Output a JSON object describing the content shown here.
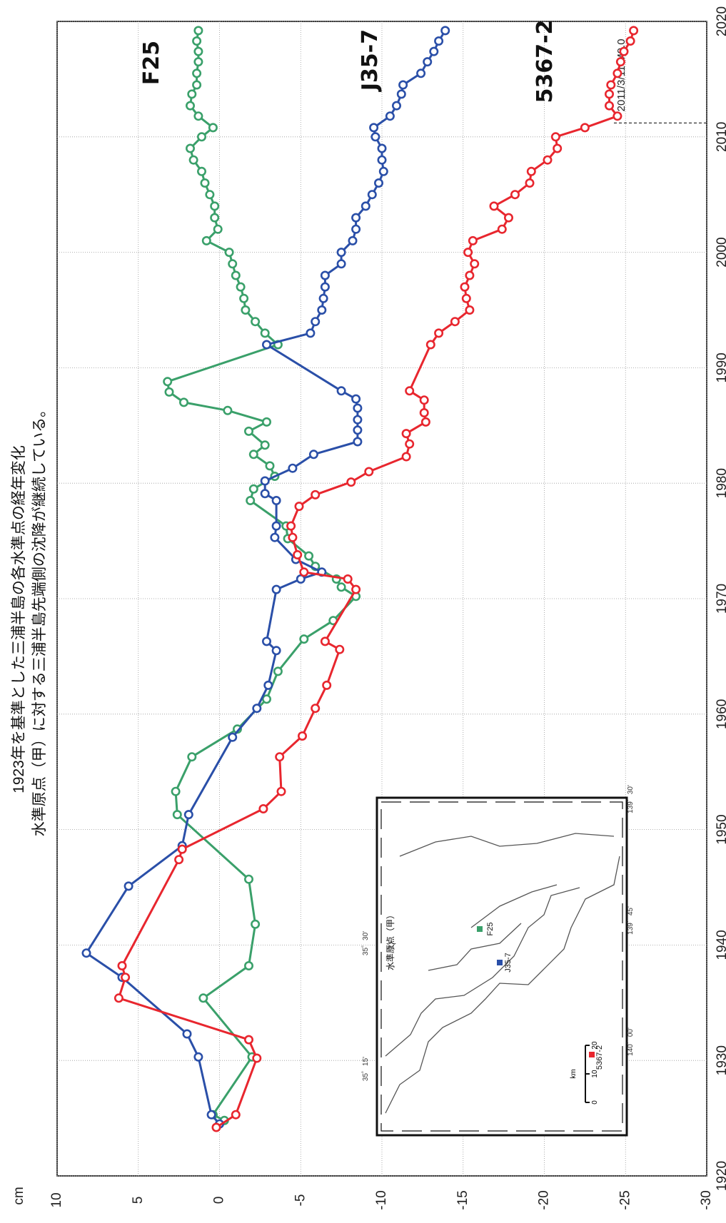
{
  "header": {
    "title_line1": "1923年を基準とした三浦半島の各水準点の経年変化",
    "title_line2": "水準原点（甲）に対する三浦半島先端側の沈降が継続している。"
  },
  "annotations": {
    "earthquake_label": "2011/3/11 M9.0",
    "earthquake_year": 2011.2,
    "y_unit": "cm"
  },
  "inset_map": {
    "origin_label": "水準原点（甲）",
    "stations": [
      "F25",
      "J35-7",
      "5367-2"
    ],
    "station_colors": [
      "#3aa06a",
      "#2a4fa8",
      "#e8262e"
    ],
    "lat_labels": [
      "35゜30'",
      "35゜15'"
    ],
    "lon_labels": [
      "139゜30'",
      "139゜45'",
      "140゜00'"
    ],
    "scale_ticks": [
      "0",
      "10",
      "20"
    ],
    "scale_unit": "km"
  },
  "chart_data": {
    "type": "line",
    "xlabel": "",
    "ylabel": "cm",
    "xlim": [
      1920,
      2020
    ],
    "ylim": [
      -30,
      10
    ],
    "x_ticks": [
      1920,
      1930,
      1940,
      1950,
      1960,
      1970,
      1980,
      1990,
      2000,
      2010,
      2020
    ],
    "y_ticks": [
      10,
      5,
      0,
      -5,
      -10,
      -15,
      -20,
      -25,
      -30
    ],
    "grid": true,
    "series": [
      {
        "name": "F25",
        "color": "#3aa06a",
        "x": [
          1924.8,
          1925.3,
          1930.3,
          1935.4,
          1938.2,
          1941.8,
          1945.7,
          1951.3,
          1953.3,
          1956.3,
          1958.7,
          1961.3,
          1963.7,
          1966.5,
          1968.1,
          1970.2,
          1971.0,
          1971.7,
          1972.8,
          1973.7,
          1975.2,
          1976.3,
          1978.5,
          1979.5,
          1980.6,
          1981.5,
          1982.5,
          1983.3,
          1984.5,
          1985.3,
          1986.3,
          1987.0,
          1987.9,
          1988.8,
          1992.0,
          1993.0,
          1994.0,
          1995.0,
          1996.0,
          1997.0,
          1998.0,
          1999.0,
          2000.0,
          2001.0,
          2002.0,
          2003.0,
          2004.0,
          2005.0,
          2006.0,
          2007.0,
          2008.0,
          2009.0,
          2010.0,
          2010.8,
          2011.8,
          2012.7,
          2013.7,
          2014.5,
          2015.5,
          2016.5,
          2017.4,
          2018.3,
          2019.2
        ],
        "values": [
          -0.3,
          0.4,
          -2.0,
          1.0,
          -1.8,
          -2.2,
          -1.8,
          2.6,
          2.7,
          1.7,
          -1.1,
          -2.9,
          -3.6,
          -5.2,
          -7.0,
          -8.4,
          -7.5,
          -7.2,
          -5.9,
          -5.5,
          -4.2,
          -4.1,
          -1.9,
          -2.1,
          -3.4,
          -3.1,
          -2.1,
          -2.8,
          -1.8,
          -2.9,
          -0.5,
          2.2,
          3.1,
          3.2,
          -3.6,
          -2.8,
          -2.2,
          -1.6,
          -1.5,
          -1.3,
          -1.0,
          -0.8,
          -0.6,
          0.8,
          0.1,
          0.3,
          0.3,
          0.6,
          0.9,
          1.1,
          1.6,
          1.8,
          1.1,
          0.4,
          1.3,
          1.8,
          1.7,
          1.4,
          1.4,
          1.3,
          1.3,
          1.4,
          1.3
        ]
      },
      {
        "name": "J35-7",
        "color": "#2a4fa8",
        "x": [
          1924.5,
          1925.3,
          1930.3,
          1932.3,
          1937.2,
          1939.3,
          1945.1,
          1948.6,
          1951.3,
          1958.0,
          1960.5,
          1962.5,
          1965.5,
          1966.3,
          1970.8,
          1971.7,
          1972.3,
          1973.4,
          1975.3,
          1976.3,
          1978.5,
          1979.1,
          1980.2,
          1981.3,
          1982.5,
          1983.6,
          1984.6,
          1985.5,
          1986.5,
          1987.3,
          1988.0,
          1992.0,
          1993.0,
          1994.0,
          1995.0,
          1996.0,
          1997.0,
          1998.0,
          1999.0,
          2000.0,
          2001.0,
          2002.0,
          2003.0,
          2004.0,
          2005.0,
          2006.0,
          2007.0,
          2008.0,
          2009.0,
          2010.0,
          2010.8,
          2011.8,
          2012.7,
          2013.7,
          2014.5,
          2015.5,
          2016.5,
          2017.4,
          2018.3,
          2019.2
        ],
        "values": [
          0.0,
          0.5,
          1.3,
          2.0,
          6.0,
          8.2,
          5.6,
          2.3,
          1.9,
          -0.8,
          -2.3,
          -3.0,
          -3.5,
          -2.9,
          -3.5,
          -5.0,
          -6.3,
          -4.7,
          -3.4,
          -3.5,
          -3.5,
          -2.8,
          -2.8,
          -4.5,
          -5.8,
          -8.5,
          -8.5,
          -8.5,
          -8.5,
          -8.4,
          -7.5,
          -2.9,
          -5.6,
          -5.9,
          -6.3,
          -6.4,
          -6.5,
          -6.5,
          -7.5,
          -7.5,
          -8.2,
          -8.4,
          -8.4,
          -9.0,
          -9.4,
          -9.8,
          -10.1,
          -10.0,
          -10.0,
          -9.6,
          -9.5,
          -10.5,
          -10.9,
          -11.2,
          -11.3,
          -12.4,
          -12.8,
          -13.2,
          -13.5,
          -13.9
        ]
      },
      {
        "name": "5367-2",
        "color": "#e8262e",
        "x": [
          1924.2,
          1925.3,
          1930.2,
          1931.8,
          1935.4,
          1937.2,
          1938.2,
          1947.4,
          1948.3,
          1951.8,
          1953.3,
          1956.3,
          1958.1,
          1960.5,
          1962.5,
          1965.6,
          1966.3,
          1970.8,
          1971.7,
          1972.3,
          1973.8,
          1975.3,
          1976.3,
          1978.0,
          1979.0,
          1980.1,
          1981.0,
          1982.3,
          1983.4,
          1984.3,
          1985.3,
          1986.1,
          1987.2,
          1988.0,
          1992.0,
          1993.0,
          1994.0,
          1995.0,
          1996.0,
          1997.0,
          1998.0,
          1999.0,
          2000.0,
          2001.0,
          2002.0,
          2003.0,
          2004.0,
          2005.0,
          2006.0,
          2007.0,
          2008.0,
          2009.0,
          2010.0,
          2010.8,
          2011.8,
          2012.7,
          2013.7,
          2014.5,
          2015.5,
          2016.5,
          2017.4,
          2018.3,
          2019.2
        ],
        "values": [
          0.2,
          -1.0,
          -2.3,
          -1.8,
          6.2,
          5.8,
          6.0,
          2.5,
          2.3,
          -2.7,
          -3.8,
          -3.7,
          -5.1,
          -5.9,
          -6.6,
          -7.4,
          -6.5,
          -8.4,
          -7.9,
          -5.2,
          -4.8,
          -4.5,
          -4.4,
          -4.9,
          -5.9,
          -8.1,
          -9.2,
          -11.5,
          -11.7,
          -11.5,
          -12.7,
          -12.6,
          -12.6,
          -11.7,
          -13.0,
          -13.5,
          -14.5,
          -15.4,
          -15.2,
          -15.1,
          -15.4,
          -15.7,
          -15.3,
          -15.6,
          -17.4,
          -17.8,
          -16.9,
          -18.2,
          -19.1,
          -19.2,
          -20.2,
          -20.8,
          -20.7,
          -22.5,
          -24.5,
          -24.0,
          -24.0,
          -24.1,
          -24.5,
          -24.7,
          -24.9,
          -25.3,
          -25.5
        ]
      }
    ],
    "legend": "inline-labels"
  }
}
